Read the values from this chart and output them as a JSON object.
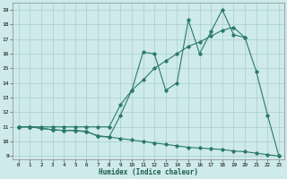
{
  "xlabel": "Humidex (Indice chaleur)",
  "bg_color": "#ceeaea",
  "grid_color": "#aacece",
  "line_color": "#2a7a6a",
  "xlim": [
    -0.5,
    23.5
  ],
  "ylim": [
    8.8,
    19.5
  ],
  "xticks": [
    0,
    1,
    2,
    3,
    4,
    5,
    6,
    7,
    8,
    9,
    10,
    11,
    12,
    13,
    14,
    15,
    16,
    17,
    18,
    19,
    20,
    21,
    22,
    23
  ],
  "yticks": [
    9,
    10,
    11,
    12,
    13,
    14,
    15,
    16,
    17,
    18,
    19
  ],
  "line1_x": [
    0,
    1,
    2,
    3,
    4,
    5,
    6,
    7,
    8,
    9,
    10,
    11,
    12,
    13,
    14,
    15,
    16,
    17,
    18,
    19,
    20,
    21,
    22,
    23
  ],
  "line1_y": [
    11,
    11,
    10.9,
    10.8,
    10.75,
    10.75,
    10.7,
    10.35,
    10.3,
    11.8,
    13.5,
    16.1,
    16.0,
    13.5,
    14.0,
    18.3,
    16.0,
    17.5,
    19.0,
    17.3,
    17.1,
    14.8,
    11.8,
    9.0
  ],
  "line2_x": [
    0,
    1,
    2,
    3,
    4,
    5,
    6,
    7,
    8,
    9,
    10,
    11,
    12,
    13,
    14,
    15,
    16,
    17,
    18,
    19,
    20
  ],
  "line2_y": [
    11,
    11,
    11,
    11,
    11,
    11,
    11,
    11,
    11,
    12.5,
    13.5,
    14.2,
    15.0,
    15.5,
    16.0,
    16.5,
    16.8,
    17.2,
    17.6,
    17.8,
    17.1
  ],
  "line3_x": [
    0,
    1,
    2,
    3,
    4,
    5,
    6,
    7,
    8,
    9,
    10,
    11,
    12,
    13,
    14,
    15,
    16,
    17,
    18,
    19,
    20,
    21,
    22,
    23
  ],
  "line3_y": [
    11,
    11,
    10.9,
    10.8,
    10.75,
    10.75,
    10.65,
    10.4,
    10.3,
    10.2,
    10.1,
    10.0,
    9.9,
    9.8,
    9.7,
    9.6,
    9.55,
    9.5,
    9.45,
    9.35,
    9.3,
    9.2,
    9.1,
    9.0
  ]
}
